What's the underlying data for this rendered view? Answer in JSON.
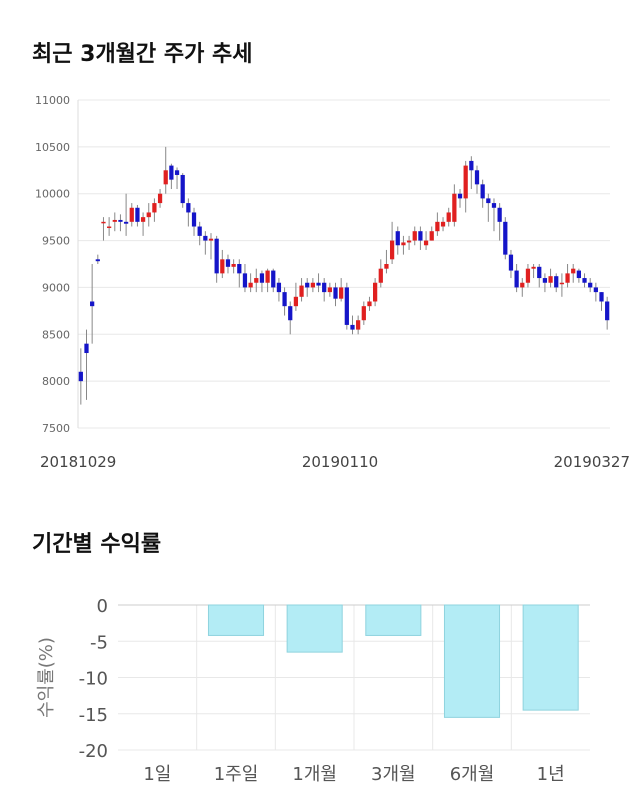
{
  "titles": {
    "candle": "최근 3개월간 주가 추세",
    "returns": "기간별 수익률"
  },
  "colors": {
    "up": "#e02020",
    "down": "#1515c8",
    "wick": "#888888",
    "grid": "#e8e8e8",
    "bar_fill": "#b3ecf5",
    "bar_stroke": "#8fd3de"
  },
  "chart_data": [
    {
      "type": "candlestick",
      "title": "최근 3개월간 주가 추세",
      "ylim": [
        7500,
        11000
      ],
      "yticks": [
        7500,
        8000,
        8500,
        9000,
        9500,
        10000,
        10500,
        11000
      ],
      "xtick_labels": [
        "20181029",
        "20190110",
        "20190327"
      ],
      "grid": true,
      "close": [
        8000,
        8300,
        8800,
        9280,
        9700,
        9650,
        9720,
        9700,
        9680,
        9850,
        9700,
        9750,
        9800,
        9900,
        10000,
        10250,
        10150,
        10200,
        9900,
        9800,
        9650,
        9550,
        9500,
        9520,
        9150,
        9300,
        9220,
        9250,
        9150,
        9000,
        9050,
        9100,
        9050,
        9180,
        9000,
        8950,
        8800,
        8650,
        8900,
        9020,
        9000,
        9050,
        9020,
        8950,
        9000,
        8880,
        9000,
        8600,
        8550,
        8650,
        8800,
        8850,
        9050,
        9200,
        9250,
        9500,
        9450,
        9480,
        9500,
        9600,
        9500,
        9500,
        9600,
        9700,
        9700,
        9800,
        10000,
        9950,
        10300,
        10250,
        10100,
        9950,
        9900,
        9850,
        9700,
        9350,
        9180,
        9000,
        9050,
        9200,
        9220,
        9100,
        9050,
        9120,
        9000,
        9050,
        9150,
        9200,
        9100,
        9050,
        9000,
        8950,
        8850,
        8650
      ],
      "open": [
        8100,
        8400,
        8850,
        9300,
        9700,
        9650,
        9700,
        9720,
        9700,
        9700,
        9850,
        9700,
        9750,
        9800,
        9900,
        10100,
        10300,
        10250,
        10200,
        9900,
        9800,
        9650,
        9550,
        9500,
        9520,
        9150,
        9300,
        9220,
        9250,
        9150,
        9000,
        9050,
        9150,
        9050,
        9180,
        9050,
        8950,
        8800,
        8800,
        8900,
        9050,
        9000,
        9050,
        9050,
        8950,
        9000,
        8880,
        9000,
        8600,
        8550,
        8650,
        8800,
        8850,
        9050,
        9200,
        9300,
        9600,
        9450,
        9480,
        9500,
        9600,
        9450,
        9500,
        9600,
        9650,
        9700,
        9700,
        10000,
        9950,
        10350,
        10250,
        10100,
        9950,
        9900,
        9850,
        9700,
        9350,
        9180,
        9000,
        9050,
        9200,
        9220,
        9100,
        9050,
        9120,
        9050,
        9050,
        9150,
        9180,
        9100,
        9050,
        9000,
        8950,
        8850
      ],
      "high": [
        8350,
        8550,
        9250,
        9350,
        9750,
        9750,
        9800,
        9780,
        10000,
        9900,
        9880,
        9800,
        9900,
        9950,
        10050,
        10500,
        10320,
        10280,
        10220,
        9950,
        9850,
        9700,
        9600,
        9580,
        9550,
        9400,
        9350,
        9300,
        9300,
        9250,
        9150,
        9200,
        9180,
        9200,
        9200,
        9100,
        9000,
        8850,
        9050,
        9100,
        9100,
        9100,
        9150,
        9100,
        9050,
        9050,
        9100,
        9050,
        8700,
        8700,
        8850,
        8900,
        9100,
        9300,
        9400,
        9700,
        9650,
        9550,
        9550,
        9650,
        9650,
        9600,
        9650,
        9800,
        9750,
        9850,
        10100,
        10050,
        10350,
        10400,
        10300,
        10150,
        10000,
        9950,
        9900,
        9750,
        9400,
        9250,
        9100,
        9250,
        9250,
        9250,
        9150,
        9200,
        9150,
        9150,
        9250,
        9250,
        9200,
        9150,
        9100,
        9050,
        8950,
        8900
      ],
      "low": [
        7750,
        7800,
        8400,
        9250,
        9500,
        9550,
        9600,
        9600,
        9550,
        9650,
        9650,
        9550,
        9650,
        9700,
        9850,
        10000,
        10050,
        10050,
        9850,
        9650,
        9550,
        9450,
        9350,
        9300,
        9050,
        9100,
        9150,
        9150,
        9000,
        8950,
        8950,
        8950,
        8950,
        8950,
        8950,
        8850,
        8700,
        8500,
        8750,
        8850,
        8900,
        8950,
        8950,
        8850,
        8900,
        8800,
        8850,
        8550,
        8500,
        8500,
        8600,
        8750,
        8800,
        9000,
        9150,
        9250,
        9350,
        9350,
        9400,
        9450,
        9400,
        9400,
        9500,
        9550,
        9600,
        9650,
        9650,
        9850,
        9800,
        10050,
        10000,
        9850,
        9700,
        9600,
        9500,
        9300,
        9100,
        8950,
        8900,
        9000,
        9100,
        9000,
        8950,
        9000,
        8950,
        8900,
        9000,
        9050,
        9050,
        9000,
        8950,
        8850,
        8750,
        8550
      ]
    },
    {
      "type": "bar",
      "title": "기간별 수익률",
      "ylabel": "수익률(%)",
      "categories": [
        "1일",
        "1주일",
        "1개월",
        "3개월",
        "6개월",
        "1년"
      ],
      "values": [
        0,
        -4.2,
        -6.5,
        -4.2,
        -15.5,
        -14.5
      ],
      "ylim": [
        -20,
        0
      ],
      "yticks": [
        0,
        -5,
        -10,
        -15,
        -20
      ],
      "grid": true
    }
  ]
}
